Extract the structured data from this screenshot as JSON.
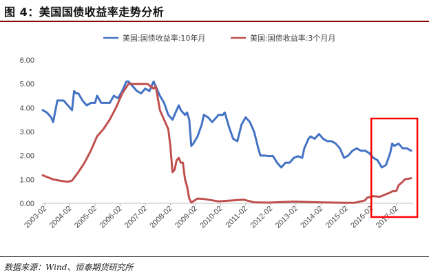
{
  "figure": {
    "title": "图 4：美国国债收益率走势分析",
    "source": "数据来源：Wind、恒泰期货研究所"
  },
  "chart_data": {
    "type": "line",
    "ylim": [
      0,
      6
    ],
    "y_ticks": [
      "0.00",
      "1.00",
      "2.00",
      "3.00",
      "4.00",
      "5.00",
      "6.00"
    ],
    "x_ticks": [
      "2003-02",
      "2004-02",
      "2005-02",
      "2006-02",
      "2007-02",
      "2008-02",
      "2009-02",
      "2010-02",
      "2011-02",
      "2012-02",
      "2013-02",
      "2014-02",
      "2015-02",
      "2016-02",
      "2017-02"
    ],
    "xlim": [
      "2003-01",
      "2017-10"
    ],
    "grid": false,
    "legend_position": "top",
    "series": [
      {
        "name": "美国:国债收益率:10年月",
        "color": "#4472c4",
        "x": [
          "2003-01",
          "2003-03",
          "2003-05",
          "2003-06",
          "2003-08",
          "2003-09",
          "2003-11",
          "2004-01",
          "2004-03",
          "2004-04",
          "2004-05",
          "2004-06",
          "2004-08",
          "2004-10",
          "2004-12",
          "2005-02",
          "2005-03",
          "2005-05",
          "2005-07",
          "2005-09",
          "2005-11",
          "2006-01",
          "2006-03",
          "2006-05",
          "2006-06",
          "2006-08",
          "2006-10",
          "2006-12",
          "2007-02",
          "2007-04",
          "2007-06",
          "2007-07",
          "2007-08",
          "2007-09",
          "2007-11",
          "2008-01",
          "2008-03",
          "2008-05",
          "2008-06",
          "2008-07",
          "2008-09",
          "2008-10",
          "2008-11",
          "2008-12",
          "2009-01",
          "2009-03",
          "2009-05",
          "2009-06",
          "2009-08",
          "2009-10",
          "2009-12",
          "2010-01",
          "2010-03",
          "2010-04",
          "2010-06",
          "2010-08",
          "2010-10",
          "2010-12",
          "2011-02",
          "2011-04",
          "2011-06",
          "2011-08",
          "2011-09",
          "2011-11",
          "2012-01",
          "2012-03",
          "2012-05",
          "2012-07",
          "2012-09",
          "2012-11",
          "2013-01",
          "2013-03",
          "2013-05",
          "2013-06",
          "2013-08",
          "2013-09",
          "2013-11",
          "2014-01",
          "2014-03",
          "2014-05",
          "2014-07",
          "2014-09",
          "2014-11",
          "2015-01",
          "2015-03",
          "2015-05",
          "2015-07",
          "2015-09",
          "2015-11",
          "2016-01",
          "2016-03",
          "2016-05",
          "2016-07",
          "2016-09",
          "2016-11",
          "2016-12",
          "2017-01",
          "2017-03",
          "2017-05",
          "2017-07",
          "2017-09"
        ],
        "values": [
          3.9,
          3.8,
          3.6,
          3.4,
          4.3,
          4.3,
          4.3,
          4.1,
          3.9,
          4.7,
          4.6,
          4.6,
          4.3,
          4.1,
          4.2,
          4.2,
          4.5,
          4.2,
          4.2,
          4.2,
          4.5,
          4.4,
          4.7,
          5.1,
          5.1,
          4.9,
          4.7,
          4.6,
          4.8,
          4.7,
          5.1,
          4.9,
          4.7,
          4.5,
          4.2,
          3.7,
          3.5,
          3.9,
          4.1,
          3.9,
          3.7,
          3.8,
          3.5,
          2.4,
          2.5,
          2.8,
          3.3,
          3.7,
          3.6,
          3.4,
          3.6,
          3.7,
          3.7,
          3.8,
          3.2,
          2.7,
          2.6,
          3.3,
          3.6,
          3.4,
          3.0,
          2.3,
          2.0,
          2.0,
          1.97,
          1.98,
          1.7,
          1.5,
          1.7,
          1.7,
          1.9,
          1.97,
          1.9,
          2.3,
          2.7,
          2.8,
          2.7,
          2.9,
          2.7,
          2.6,
          2.6,
          2.5,
          2.3,
          1.9,
          2.0,
          2.2,
          2.3,
          2.2,
          2.2,
          2.1,
          1.9,
          1.8,
          1.5,
          1.6,
          2.1,
          2.5,
          2.4,
          2.5,
          2.3,
          2.3,
          2.2
        ]
      },
      {
        "name": "美国:国债收益率:3个月月",
        "color": "#c0504d",
        "x": [
          "2003-01",
          "2003-06",
          "2003-09",
          "2004-01",
          "2004-03",
          "2004-06",
          "2004-09",
          "2004-12",
          "2005-03",
          "2005-06",
          "2005-09",
          "2005-12",
          "2006-03",
          "2006-06",
          "2006-09",
          "2006-12",
          "2007-03",
          "2007-06",
          "2007-07",
          "2007-08",
          "2007-09",
          "2007-11",
          "2008-01",
          "2008-02",
          "2008-03",
          "2008-04",
          "2008-05",
          "2008-06",
          "2008-07",
          "2008-08",
          "2008-09",
          "2008-10",
          "2008-11",
          "2008-12",
          "2009-03",
          "2009-06",
          "2010-01",
          "2011-01",
          "2011-06",
          "2012-01",
          "2013-01",
          "2014-01",
          "2015-01",
          "2015-06",
          "2015-11",
          "2015-12",
          "2016-03",
          "2016-06",
          "2016-11",
          "2016-12",
          "2017-02",
          "2017-03",
          "2017-05",
          "2017-06",
          "2017-08",
          "2017-09"
        ],
        "values": [
          1.17,
          1.0,
          0.95,
          0.9,
          0.95,
          1.3,
          1.7,
          2.2,
          2.8,
          3.1,
          3.5,
          4.0,
          4.6,
          5.0,
          5.0,
          5.0,
          5.0,
          4.8,
          4.9,
          4.4,
          3.9,
          3.5,
          3.1,
          2.4,
          1.3,
          1.4,
          1.8,
          1.9,
          1.7,
          1.7,
          1.0,
          0.7,
          0.2,
          0.03,
          0.2,
          0.18,
          0.08,
          0.15,
          0.04,
          0.03,
          0.07,
          0.04,
          0.02,
          0.02,
          0.12,
          0.23,
          0.3,
          0.27,
          0.45,
          0.5,
          0.52,
          0.75,
          0.9,
          1.0,
          1.03,
          1.05
        ]
      }
    ],
    "highlight_box": {
      "x_start": "2016-02",
      "x_end": "2017-12",
      "color": "#ff0000"
    }
  }
}
